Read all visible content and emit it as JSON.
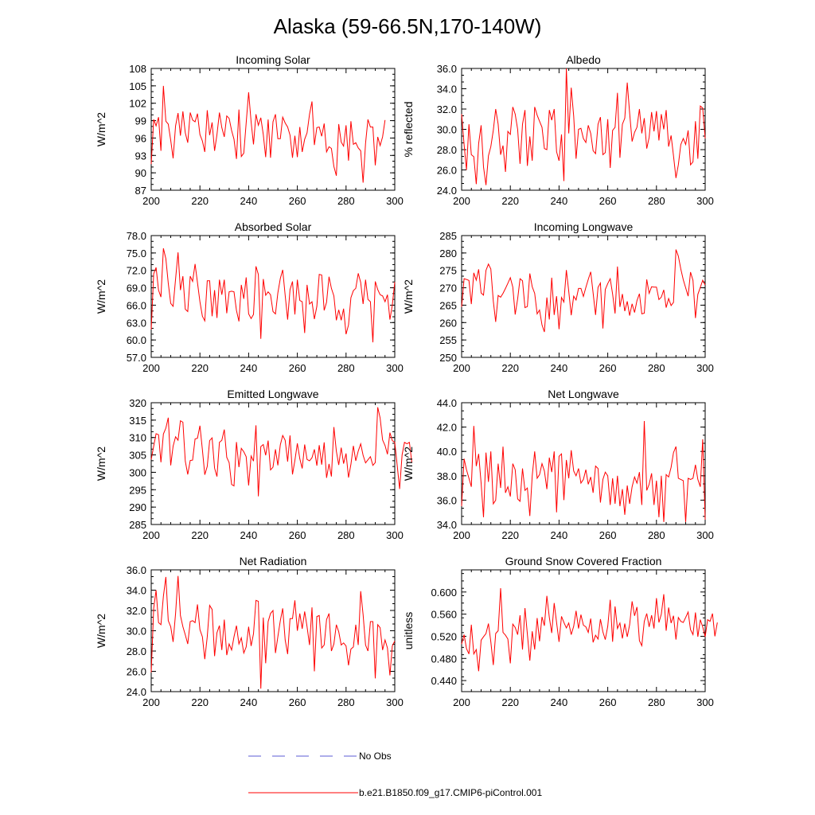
{
  "figure": {
    "title": "Alaska (59-66.5N,170-140W)",
    "legend": {
      "obs_label": "No Obs",
      "obs_color": "#5b5bd6",
      "model_label": "b.e21.B1850.f09_g17.CMIP6-piControl.001",
      "model_color": "#ff0000"
    }
  },
  "chart_data": [
    {
      "type": "line",
      "title": "Incoming Solar",
      "ylabel": "W/m^2",
      "xlim": [
        200,
        300
      ],
      "ylim": [
        87,
        108
      ],
      "xticks": [
        "200",
        "220",
        "240",
        "260",
        "280",
        "300"
      ],
      "yticks": [
        "87",
        "90",
        "93",
        "96",
        "99",
        "102",
        "105",
        "108"
      ],
      "ytick_values": [
        87,
        90,
        93,
        96,
        99,
        102,
        105,
        108
      ],
      "x_start": 200,
      "values": [
        91.5,
        99.2,
        98.1,
        99.6,
        93.8,
        105.0,
        98.9,
        98.4,
        95.6,
        92.5,
        98.1,
        100.3,
        96.4,
        100.6,
        96.9,
        95.2,
        100.4,
        99.1,
        98.8,
        100.2,
        96.6,
        95.5,
        93.6,
        100.8,
        96.5,
        98.7,
        93.8,
        96.6,
        100.4,
        97.8,
        96.2,
        99.8,
        99.4,
        97.3,
        95.8,
        92.4,
        100.9,
        92.8,
        93.4,
        98.6,
        103.9,
        98.8,
        94.9,
        100.1,
        98.2,
        99.5,
        96.6,
        92.7,
        99.2,
        92.6,
        98.8,
        100.1,
        95.9,
        95.9,
        99.6,
        98.6,
        97.9,
        96.5,
        92.6,
        96.4,
        92.7,
        97.9,
        93.6,
        95.8,
        96.9,
        100.1,
        102.3,
        94.8,
        97.8,
        97.9,
        96.3,
        98.5,
        93.6,
        94.5,
        94.2,
        91.1,
        89.5,
        98.4,
        95.3,
        94.6,
        98.2,
        92.1,
        98.9,
        94.9,
        95.2,
        94.3,
        93.8,
        88.3,
        95.1,
        99.2,
        97.9,
        97.9,
        91.3,
        96.2,
        94.7,
        96.2,
        99.1
      ]
    },
    {
      "type": "line",
      "title": "Albedo",
      "ylabel": "% reflected",
      "xlim": [
        200,
        300
      ],
      "ylim": [
        24,
        36
      ],
      "xticks": [
        "200",
        "220",
        "240",
        "260",
        "280",
        "300"
      ],
      "yticks": [
        "24.0",
        "26.0",
        "28.0",
        "30.0",
        "32.0",
        "34.0",
        "36.0"
      ],
      "ytick_values": [
        24,
        26,
        28,
        30,
        32,
        34,
        36
      ],
      "x_start": 200,
      "values": [
        31.5,
        28.5,
        26.0,
        30.5,
        27.5,
        27.3,
        24.6,
        28.6,
        30.4,
        26.3,
        24.5,
        27.4,
        28.3,
        29.9,
        32.0,
        30.5,
        27.5,
        28.4,
        25.8,
        29.8,
        29.5,
        32.2,
        31.5,
        30.0,
        26.6,
        30.5,
        31.9,
        26.4,
        29.3,
        26.9,
        32.2,
        31.4,
        30.8,
        30.2,
        28.1,
        28.0,
        31.9,
        30.9,
        32.0,
        27.8,
        26.9,
        29.5,
        24.9,
        36.0,
        29.6,
        34.1,
        31.3,
        27.1,
        30.0,
        30.1,
        29.1,
        28.7,
        30.4,
        29.6,
        27.9,
        27.6,
        30.5,
        31.2,
        27.5,
        27.7,
        31.0,
        26.2,
        29.9,
        30.2,
        33.6,
        27.2,
        30.5,
        31.1,
        34.6,
        31.6,
        28.8,
        29.7,
        30.2,
        32.0,
        29.6,
        31.1,
        28.1,
        29.2,
        31.7,
        29.8,
        31.8,
        28.9,
        31.5,
        30.0,
        31.9,
        28.3,
        29.4,
        27.4,
        25.2,
        26.5,
        28.5,
        29.1,
        28.5,
        29.9,
        26.5,
        26.8,
        30.8,
        27.1,
        32.3,
        32.1,
        29.1
      ]
    },
    {
      "type": "line",
      "title": "Absorbed Solar",
      "ylabel": "W/m^2",
      "xlim": [
        200,
        300
      ],
      "ylim": [
        57,
        78
      ],
      "xticks": [
        "200",
        "220",
        "240",
        "260",
        "280",
        "300"
      ],
      "yticks": [
        "57.0",
        "60.0",
        "63.0",
        "66.0",
        "69.0",
        "72.0",
        "75.0",
        "78.0"
      ],
      "ytick_values": [
        57,
        60,
        63,
        66,
        69,
        72,
        75,
        78
      ],
      "x_start": 200,
      "values": [
        61.8,
        71.4,
        72.5,
        68.6,
        67.4,
        75.8,
        74.0,
        69.8,
        66.3,
        65.8,
        70.5,
        75.1,
        68.6,
        71.0,
        65.3,
        64.9,
        71.0,
        70.1,
        73.1,
        69.9,
        66.6,
        64.1,
        63.3,
        70.2,
        70.2,
        64.1,
        68.6,
        63.8,
        70.4,
        67.8,
        70.4,
        64.6,
        68.3,
        68.4,
        68.3,
        65.1,
        63.2,
        69.5,
        67.1,
        70.8,
        64.5,
        63.7,
        64.4,
        72.7,
        71.3,
        60.2,
        70.5,
        67.7,
        68.3,
        67.8,
        64.9,
        64.5,
        68.1,
        70.6,
        72.1,
        67.7,
        63.5,
        68.7,
        70.1,
        64.4,
        70.4,
        66.8,
        66.6,
        61.2,
        69.5,
        66.2,
        66.6,
        63.6,
        65.8,
        71.3,
        71.2,
        65.1,
        66.5,
        70.9,
        68.9,
        67.6,
        63.4,
        65.2,
        63.4,
        65.4,
        61.0,
        62.6,
        67.3,
        68.5,
        68.9,
        71.5,
        69.9,
        66.2,
        70.4,
        67.0,
        66.6,
        59.6,
        70.1,
        68.7,
        67.8,
        67.6,
        66.6,
        67.8,
        63.5,
        66.0,
        70.0
      ]
    },
    {
      "type": "line",
      "title": "Incoming Longwave",
      "ylabel": "W/m^2",
      "xlim": [
        200,
        300
      ],
      "ylim": [
        250,
        285
      ],
      "xticks": [
        "200",
        "220",
        "240",
        "260",
        "280",
        "300"
      ],
      "yticks": [
        "250",
        "255",
        "260",
        "265",
        "270",
        "275",
        "280",
        "285"
      ],
      "ytick_values": [
        250,
        255,
        260,
        265,
        270,
        275,
        280,
        285
      ],
      "x_start": 200,
      "values": [
        264.5,
        272.6,
        272.4,
        272.1,
        265.3,
        274.3,
        272.2,
        275.3,
        268.5,
        267.9,
        275.0,
        276.8,
        275.4,
        266.2,
        260.2,
        267.8,
        267.3,
        268.4,
        269.8,
        271.3,
        272.9,
        270.2,
        262.3,
        266.8,
        272.6,
        272.0,
        264.3,
        264.6,
        274.1,
        270.3,
        268.4,
        262.5,
        263.6,
        259.3,
        257.3,
        267.2,
        260.9,
        272.9,
        262.2,
        267.6,
        258.1,
        267.2,
        265.9,
        275.1,
        269.0,
        262.1,
        267.6,
        266.5,
        269.8,
        269.8,
        267.5,
        270.1,
        272.4,
        274.6,
        268.5,
        262.2,
        270.1,
        271.4,
        258.3,
        269.5,
        271.2,
        272.6,
        268.2,
        262.6,
        276.1,
        264.5,
        268.2,
        263.3,
        266.1,
        262.0,
        265.4,
        262.9,
        266.3,
        268.3,
        262.5,
        262.7,
        272.4,
        268.4,
        270.3,
        270.2,
        270.2,
        266.6,
        267.3,
        269.4,
        264.3,
        266.9,
        264.9,
        265.8,
        281.0,
        279.1,
        275.4,
        272.3,
        270.0,
        267.6,
        274.5,
        272.1,
        261.3,
        268.1,
        270.1,
        272.2,
        270.8
      ]
    },
    {
      "type": "line",
      "title": "Emitted Longwave",
      "ylabel": "W/m^2",
      "xlim": [
        200,
        300
      ],
      "ylim": [
        285,
        320
      ],
      "xticks": [
        "200",
        "220",
        "240",
        "260",
        "280",
        "300"
      ],
      "yticks": [
        "285",
        "290",
        "295",
        "300",
        "305",
        "310",
        "315",
        "320"
      ],
      "ytick_values": [
        285,
        290,
        295,
        300,
        305,
        310,
        315,
        320
      ],
      "x_start": 200,
      "values": [
        303.7,
        307.5,
        311.1,
        310.8,
        302.9,
        311.0,
        312.7,
        315.7,
        302.0,
        307.5,
        310.2,
        309.2,
        314.8,
        314.4,
        303.2,
        299.4,
        303.4,
        303.5,
        309.6,
        309.8,
        313.4,
        306.5,
        299.3,
        301.7,
        309.1,
        309.9,
        301.2,
        298.8,
        308.6,
        309.2,
        312.3,
        304.3,
        302.8,
        296.5,
        296.1,
        308.7,
        301.5,
        306.9,
        305.9,
        304.5,
        296.2,
        304.7,
        303.2,
        313.5,
        293.1,
        307.4,
        308.0,
        304.9,
        309.1,
        300.7,
        301.5,
        306.6,
        302.0,
        307.9,
        310.6,
        309.2,
        303.1,
        310.6,
        299.4,
        303.4,
        308.3,
        303.9,
        301.1,
        308.0,
        303.7,
        303.3,
        304.2,
        306.6,
        301.9,
        307.8,
        302.2,
        308.6,
        298.4,
        302.4,
        298.8,
        313.0,
        306.1,
        302.1,
        307.1,
        302.5,
        305.4,
        298.5,
        302.3,
        307.6,
        303.3,
        306.1,
        308.2,
        304.9,
        302.7,
        303.6,
        304.5,
        302.0,
        302.8,
        318.7,
        315.6,
        309.3,
        307.7,
        305.2,
        311.4,
        309.1,
        308.6,
        301.9,
        295.2,
        305.0,
        308.6,
        308.2,
        308.6,
        302.9
      ]
    },
    {
      "type": "line",
      "title": "Net Longwave",
      "ylabel": "W/m^2",
      "xlim": [
        200,
        300
      ],
      "ylim": [
        34,
        44
      ],
      "xticks": [
        "200",
        "220",
        "240",
        "260",
        "280",
        "300"
      ],
      "yticks": [
        "34.0",
        "36.0",
        "38.0",
        "40.0",
        "42.0",
        "44.0"
      ],
      "ytick_values": [
        34,
        36,
        38,
        40,
        42,
        44
      ],
      "x_start": 200,
      "values": [
        35.5,
        39.4,
        38.5,
        37.8,
        37.1,
        42.1,
        38.8,
        39.8,
        37.4,
        34.6,
        39.9,
        37.5,
        40.0,
        35.7,
        36.0,
        39.0,
        37.0,
        40.4,
        36.6,
        37.1,
        36.3,
        39.0,
        38.5,
        36.1,
        35.9,
        38.6,
        36.8,
        37.0,
        34.7,
        38.0,
        40.0,
        37.8,
        38.1,
        39.0,
        38.4,
        36.9,
        39.5,
        38.3,
        40.0,
        35.0,
        39.6,
        39.8,
        36.0,
        39.3,
        37.8,
        40.1,
        38.4,
        38.0,
        38.6,
        37.4,
        37.7,
        38.5,
        37.3,
        37.9,
        36.6,
        38.8,
        38.6,
        35.8,
        37.7,
        38.3,
        38.0,
        35.6,
        37.8,
        35.7,
        38.0,
        35.5,
        36.9,
        34.8,
        37.2,
        35.7,
        37.1,
        37.9,
        37.4,
        38.3,
        35.6,
        42.5,
        36.8,
        37.3,
        38.2,
        35.6,
        37.6,
        34.6,
        38.0,
        34.2,
        38.1,
        37.9,
        38.7,
        39.9,
        40.4,
        37.8,
        37.7,
        37.6,
        34.2,
        37.8,
        37.7,
        37.8,
        38.9,
        37.7,
        37.1,
        41.0,
        34.4
      ]
    },
    {
      "type": "line",
      "title": "Net Radiation",
      "ylabel": "W/m^2",
      "xlim": [
        200,
        300
      ],
      "ylim": [
        24,
        36
      ],
      "xticks": [
        "200",
        "220",
        "240",
        "260",
        "280",
        "300"
      ],
      "yticks": [
        "24.0",
        "26.0",
        "28.0",
        "30.0",
        "32.0",
        "34.0",
        "36.0"
      ],
      "ytick_values": [
        24,
        26,
        28,
        30,
        32,
        34,
        36
      ],
      "x_start": 200,
      "values": [
        25.9,
        32.2,
        34.0,
        30.8,
        30.6,
        33.4,
        35.3,
        31.0,
        30.4,
        28.9,
        31.7,
        35.4,
        31.5,
        30.4,
        29.6,
        28.7,
        30.9,
        31.0,
        30.8,
        32.6,
        30.1,
        29.4,
        27.2,
        29.4,
        32.5,
        32.1,
        27.5,
        29.8,
        30.5,
        28.1,
        31.1,
        27.6,
        28.7,
        28.1,
        29.4,
        30.5,
        28.7,
        29.3,
        27.8,
        28.4,
        30.4,
        28.5,
        29.7,
        33.0,
        32.9,
        24.3,
        31.3,
        26.8,
        30.9,
        31.7,
        32.0,
        27.8,
        29.4,
        31.0,
        32.2,
        29.1,
        27.7,
        31.2,
        31.2,
        33.0,
        30.0,
        31.7,
        30.2,
        31.9,
        30.4,
        28.6,
        32.3,
        26.0,
        31.4,
        31.5,
        28.3,
        28.6,
        31.1,
        31.7,
        28.0,
        28.7,
        30.6,
        29.9,
        28.6,
        28.8,
        28.5,
        26.6,
        28.2,
        28.4,
        30.6,
        28.6,
        33.9,
        31.6,
        28.6,
        28.0,
        30.9,
        30.9,
        25.3,
        30.6,
        30.3,
        28.1,
        29.1,
        28.3,
        25.6,
        28.5,
        29.0
      ]
    },
    {
      "type": "line",
      "title": "Ground Snow Covered Fraction",
      "ylabel": "unitless",
      "xlim": [
        200,
        300
      ],
      "ylim": [
        0.42,
        0.64
      ],
      "xticks": [
        "200",
        "220",
        "240",
        "260",
        "280",
        "300"
      ],
      "yticks": [
        "0.440",
        "0.480",
        "0.520",
        "0.560",
        "0.600"
      ],
      "ytick_values": [
        0.44,
        0.48,
        0.52,
        0.56,
        0.6
      ],
      "x_start": 200,
      "values": [
        0.506,
        0.523,
        0.498,
        0.488,
        0.541,
        0.488,
        0.496,
        0.457,
        0.513,
        0.519,
        0.525,
        0.543,
        0.51,
        0.468,
        0.525,
        0.53,
        0.607,
        0.527,
        0.522,
        0.515,
        0.471,
        0.542,
        0.536,
        0.523,
        0.558,
        0.496,
        0.571,
        0.524,
        0.476,
        0.529,
        0.496,
        0.553,
        0.511,
        0.555,
        0.539,
        0.593,
        0.554,
        0.526,
        0.58,
        0.545,
        0.51,
        0.556,
        0.545,
        0.535,
        0.544,
        0.523,
        0.538,
        0.566,
        0.534,
        0.559,
        0.54,
        0.537,
        0.527,
        0.552,
        0.509,
        0.522,
        0.515,
        0.551,
        0.528,
        0.514,
        0.538,
        0.586,
        0.51,
        0.574,
        0.534,
        0.544,
        0.516,
        0.543,
        0.519,
        0.541,
        0.583,
        0.557,
        0.573,
        0.512,
        0.503,
        0.547,
        0.561,
        0.537,
        0.558,
        0.534,
        0.589,
        0.545,
        0.56,
        0.596,
        0.53,
        0.572,
        0.544,
        0.557,
        0.514,
        0.554,
        0.547,
        0.545,
        0.554,
        0.564,
        0.532,
        0.523,
        0.563,
        0.519,
        0.55,
        0.537,
        0.519,
        0.55,
        0.547,
        0.561,
        0.52,
        0.545
      ]
    }
  ]
}
